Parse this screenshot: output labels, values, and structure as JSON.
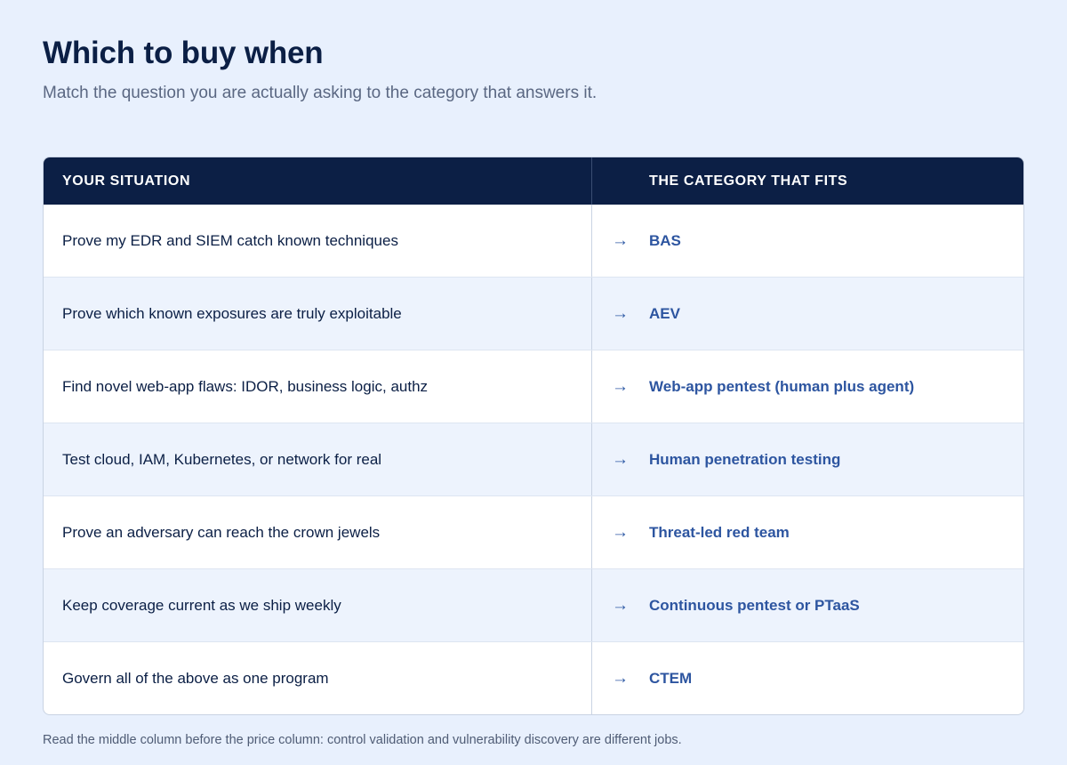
{
  "header": {
    "title": "Which to buy when",
    "subtitle": "Match the question you are actually asking to the category that answers it."
  },
  "table": {
    "columns": [
      "YOUR SITUATION",
      "THE CATEGORY THAT FITS"
    ],
    "arrow_icon": "right-arrow-icon",
    "arrow_glyph": "→",
    "rows": [
      {
        "situation": "Prove my EDR and SIEM catch known techniques",
        "category": "BAS"
      },
      {
        "situation": "Prove which known exposures are truly exploitable",
        "category": "AEV"
      },
      {
        "situation": "Find novel web-app flaws: IDOR, business logic, authz",
        "category": "Web-app pentest (human plus agent)"
      },
      {
        "situation": "Test cloud, IAM, Kubernetes, or network for real",
        "category": "Human penetration testing"
      },
      {
        "situation": "Prove an adversary can reach the crown jewels",
        "category": "Threat-led red team"
      },
      {
        "situation": "Keep coverage current as we ship weekly",
        "category": "Continuous pentest or PTaaS"
      },
      {
        "situation": "Govern all of the above as one program",
        "category": "CTEM"
      }
    ]
  },
  "footnote": "Read the middle column before the price column: control validation and vulnerability discovery are different jobs.",
  "colors": {
    "background": "#e8f0fd",
    "header_bg": "#0c1f45",
    "accent": "#2d55a0",
    "row_alt": "#edf3fd"
  }
}
